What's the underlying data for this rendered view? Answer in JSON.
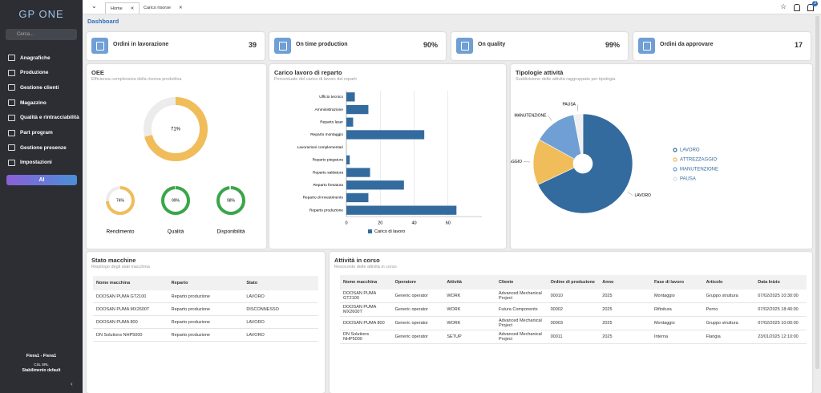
{
  "sidebar": {
    "logo": "GP ONE",
    "search_placeholder": "Cerca...",
    "menu": [
      "Anagrafiche",
      "Produzione",
      "Gestione clienti",
      "Magazzino",
      "Qualità e rintracciabilità",
      "Part program",
      "Gestione presenze",
      "Impostazioni"
    ],
    "ai_button": "AI",
    "user": "Fiera1 - Fiera1",
    "company": "CSL SRL",
    "plant": "Stabilimento default"
  },
  "tabs": [
    "Home",
    "Carico risorse"
  ],
  "notifications": "3",
  "breadcrumb": "Dashboard",
  "kpis": [
    {
      "label": "Ordini in lavorazione",
      "value": "39"
    },
    {
      "label": "On time production",
      "value": "90%"
    },
    {
      "label": "On quality",
      "value": "99%"
    },
    {
      "label": "Ordini da approvare",
      "value": "17"
    }
  ],
  "chart_data": [
    {
      "type": "progress",
      "title": "OEE",
      "subtitle": "Efficienza complessiva della risorsa produttiva",
      "values": [
        71
      ],
      "value_labels": [
        "71%"
      ],
      "colors": [
        "#f0bd5a"
      ]
    },
    {
      "type": "progress",
      "categories": [
        "Rendimento",
        "Qualità",
        "Disponibilità"
      ],
      "values": [
        74,
        99,
        98
      ],
      "value_labels": [
        "74%",
        "99%",
        "98%"
      ],
      "colors": [
        "#f0bd5a",
        "#3aa64a",
        "#3aa64a"
      ]
    },
    {
      "type": "bar",
      "orientation": "horizontal",
      "title": "Carico lavoro di reparto",
      "subtitle": "Percentuale del carico di lavoro dei reparti",
      "categories": [
        "Ufficio tecnico",
        "Amministrazione",
        "Reparto laser",
        "Reparto montaggio",
        "Lavorazioni complementari",
        "Reparto piegatura",
        "Reparto saldatura",
        "Reparto fresatura",
        "Reparto di investimento",
        "Reparto produzione"
      ],
      "series": [
        {
          "name": "Carico di lavoro",
          "color": "#336b9e",
          "values": [
            5,
            13,
            4,
            46,
            0,
            2,
            14,
            34,
            13,
            65
          ]
        }
      ],
      "xlim": [
        0,
        80
      ],
      "xticks": [
        0,
        20,
        40,
        60
      ],
      "grid": true,
      "legend": "bottom"
    },
    {
      "type": "pie",
      "title": "Tipologie attività",
      "subtitle": "Suddivisione delle attività raggruppate per tipologia",
      "categories": [
        "LAVORO",
        "ATTREZZAGGIO",
        "MANUTENZIONE",
        "PAUSA"
      ],
      "values": [
        68,
        15,
        14,
        3
      ],
      "colors": [
        "#336b9e",
        "#f0bd5a",
        "#6f9fd4",
        "#f0f0f0"
      ],
      "legend": "right"
    }
  ],
  "machines": {
    "title": "Stato macchine",
    "subtitle": "Riepilogo degli stati macchina",
    "columns": [
      "Nome macchina",
      "Reparto",
      "Stato"
    ],
    "rows": [
      [
        "DOOSAN PUMA GT2100",
        "Reparto produzione",
        "LAVORO"
      ],
      [
        "DOOSAN PUMA MX2600T",
        "Reparto produzione",
        "DISCONNESSO"
      ],
      [
        "DOOSAN PUMA 800",
        "Reparto produzione",
        "LAVORO"
      ],
      [
        "DN Solutions NHP5000",
        "Reparto produzione",
        "LAVORO"
      ]
    ]
  },
  "activities": {
    "title": "Attività in corso",
    "subtitle": "Resoconto delle attività in corso",
    "columns": [
      "Nome macchina",
      "Operatore",
      "Attività",
      "Cliente",
      "Ordine di produzione",
      "Anno",
      "Fase di lavoro",
      "Articolo",
      "Data Inizio"
    ],
    "rows": [
      [
        "DOOSAN PUMA GT2100",
        "Generic operator",
        "WORK",
        "Advanced Mechanical Project",
        "00010",
        "2025",
        "Montaggio",
        "Gruppo struttura",
        "07/02/2025 10:30:00"
      ],
      [
        "DOOSAN PUMA MX2600T",
        "Generic operator",
        "WORK",
        "Futura Components",
        "00002",
        "2025",
        "Rifinitura",
        "Perno",
        "07/02/2025 18:40:00"
      ],
      [
        "DOOSAN PUMA 800",
        "Generic operator",
        "WORK",
        "Advanced Mechanical Project",
        "00003",
        "2025",
        "Montaggio",
        "Gruppo struttura",
        "07/02/2025 10:00:00"
      ],
      [
        "DN Solutions NHP5000",
        "Generic operator",
        "SETUP",
        "Advanced Mechanical Project",
        "00011",
        "2025",
        "Interna",
        "Flangia",
        "23/01/2025 12:10:00"
      ]
    ]
  }
}
